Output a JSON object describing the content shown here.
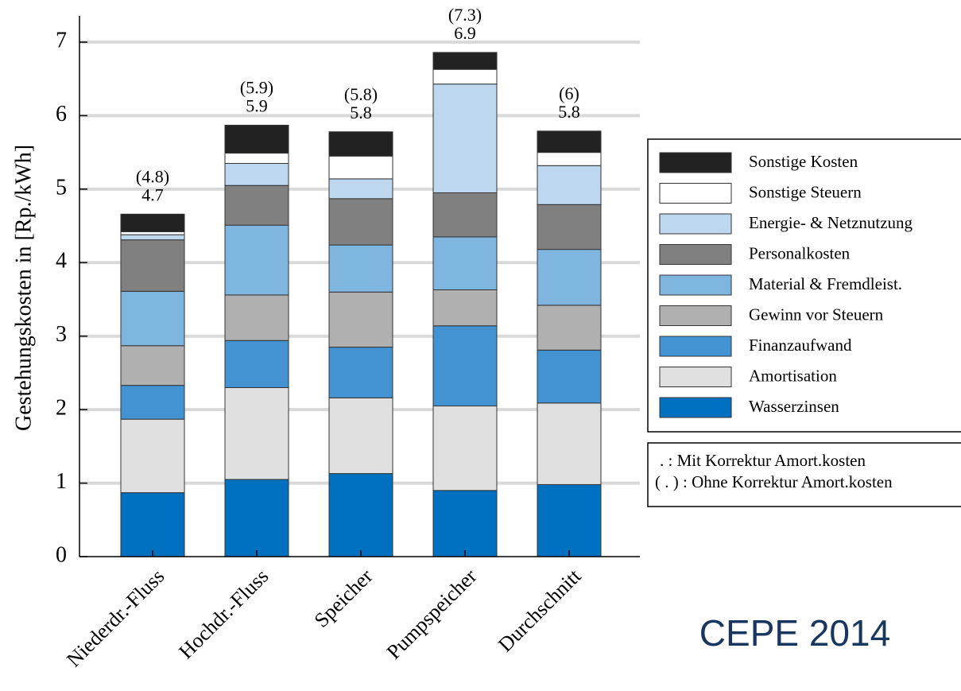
{
  "chart_data": {
    "type": "stacked_bar",
    "y_label": "Gestehungskosten in [Rp./kWh]",
    "categories": [
      "Niederdr.-Fluss",
      "Hochdr.-Fluss",
      "Speicher",
      "Pumpspeicher",
      "Durchschnitt"
    ],
    "series": [
      {
        "name": "Wasserzinsen",
        "color": "#0070c0",
        "values": [
          0.87,
          1.05,
          1.13,
          0.9,
          0.98
        ]
      },
      {
        "name": "Amortisation",
        "color": "#e0e0e0",
        "values": [
          1.0,
          1.25,
          1.03,
          1.15,
          1.11
        ]
      },
      {
        "name": "Finanzaufwand",
        "color": "#4393d3",
        "values": [
          0.46,
          0.64,
          0.69,
          1.09,
          0.72
        ]
      },
      {
        "name": "Gewinn vor Steuern",
        "color": "#b0b0b0",
        "values": [
          0.54,
          0.62,
          0.75,
          0.49,
          0.61
        ]
      },
      {
        "name": "Material & Fremdleist.",
        "color": "#7fb6e0",
        "values": [
          0.74,
          0.95,
          0.64,
          0.72,
          0.76
        ]
      },
      {
        "name": "Personalkosten",
        "color": "#808080",
        "values": [
          0.7,
          0.54,
          0.63,
          0.6,
          0.61
        ]
      },
      {
        "name": "Energie- & Netznutzung",
        "color": "#bdd7ee",
        "values": [
          0.07,
          0.3,
          0.27,
          1.48,
          0.53
        ]
      },
      {
        "name": "Sonstige Steuern",
        "color": "#ffffff",
        "values": [
          0.04,
          0.14,
          0.31,
          0.2,
          0.18
        ]
      },
      {
        "name": "Sonstige Kosten",
        "color": "#222222",
        "values": [
          0.24,
          0.38,
          0.33,
          0.23,
          0.29
        ]
      }
    ],
    "totals": [
      4.7,
      5.9,
      5.8,
      6.9,
      5.8
    ],
    "totals_uncorrected": [
      4.8,
      5.9,
      5.8,
      7.3,
      6
    ],
    "totals_uncorrected_labels": [
      "(4.8)",
      "(5.9)",
      "(5.8)",
      "(7.3)",
      "(6)"
    ],
    "legend_notes": [
      ".  :  Mit Korrektur Amort.kosten",
      "( . ) :  Ohne Korrektur Amort.kosten"
    ],
    "ylim": [
      0,
      7
    ],
    "yticks": [
      0,
      1,
      2,
      3,
      4,
      5,
      6,
      7
    ],
    "grid": true,
    "source": "CEPE 2014"
  }
}
